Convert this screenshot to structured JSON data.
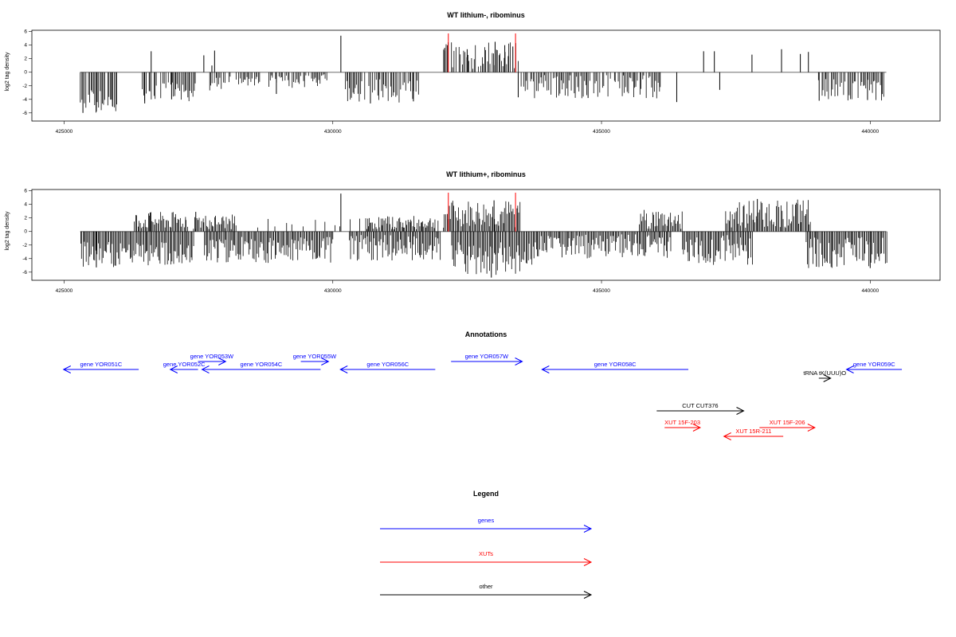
{
  "colors": {
    "gene": "#0000ff",
    "xut": "#ff0000",
    "other": "#000000",
    "marker": "#ff0000",
    "bars": "#000000",
    "zero_line": "#888888"
  },
  "chart_data": [
    {
      "type": "bar",
      "title": "WT lithium-, ribominus",
      "ylabel": "log2 tag density",
      "xlim": [
        424400,
        441300
      ],
      "ylim": [
        -7.2,
        6.2
      ],
      "xticks": [
        425000,
        430000,
        435000,
        440000
      ],
      "xtick_labels": [
        "425000",
        "430000",
        "435000",
        "440000"
      ],
      "yticks": [
        6,
        4,
        2,
        0,
        -2,
        -4,
        -6
      ],
      "ytick_labels": [
        "6",
        "4",
        "2",
        "0",
        "-2",
        "-4",
        "-6"
      ],
      "data_range": [
        425300,
        440300
      ],
      "markers": [
        432150,
        433400
      ],
      "density": "sparse",
      "peaks": [
        {
          "x": 425350,
          "y": -6.0
        },
        {
          "x": 425600,
          "y": -5.8
        },
        {
          "x": 425900,
          "y": -5.0
        },
        {
          "x": 426500,
          "y": -4.6
        },
        {
          "x": 426620,
          "y": 3.1
        },
        {
          "x": 427000,
          "y": -4.0
        },
        {
          "x": 427600,
          "y": 2.5
        },
        {
          "x": 427750,
          "y": 1.0
        },
        {
          "x": 427800,
          "y": 3.2
        },
        {
          "x": 428950,
          "y": -3.2
        },
        {
          "x": 430150,
          "y": 5.4
        },
        {
          "x": 430700,
          "y": -4.6
        },
        {
          "x": 431500,
          "y": -4.3
        },
        {
          "x": 432080,
          "y": 3.6
        },
        {
          "x": 432500,
          "y": 3.4
        },
        {
          "x": 433020,
          "y": 4.5
        },
        {
          "x": 433200,
          "y": 4.0
        },
        {
          "x": 433350,
          "y": 3.8
        },
        {
          "x": 433450,
          "y": -3.7
        },
        {
          "x": 434750,
          "y": -3.8
        },
        {
          "x": 436400,
          "y": -4.4
        },
        {
          "x": 436900,
          "y": 3.1
        },
        {
          "x": 437100,
          "y": 3.1
        },
        {
          "x": 437200,
          "y": -2.6
        },
        {
          "x": 437800,
          "y": 2.6
        },
        {
          "x": 438350,
          "y": 3.4
        },
        {
          "x": 438700,
          "y": 2.7
        },
        {
          "x": 438850,
          "y": 3.0
        },
        {
          "x": 439050,
          "y": -4.2
        },
        {
          "x": 439950,
          "y": -4.1
        }
      ],
      "regions": [
        {
          "start": 425300,
          "end": 426000,
          "sign": -1,
          "min": 2.5,
          "max": 6.0
        },
        {
          "start": 426450,
          "end": 427450,
          "sign": -1,
          "min": 1.5,
          "max": 4.3
        },
        {
          "start": 427700,
          "end": 428100,
          "sign": -1,
          "min": 0.4,
          "max": 2.7
        },
        {
          "start": 428200,
          "end": 428700,
          "sign": -1,
          "min": 0.5,
          "max": 2.0
        },
        {
          "start": 428800,
          "end": 429900,
          "sign": -1,
          "min": 0.3,
          "max": 2.3
        },
        {
          "start": 430200,
          "end": 431600,
          "sign": -1,
          "min": 1.0,
          "max": 4.5
        },
        {
          "start": 432050,
          "end": 433450,
          "sign": 1,
          "min": 0.5,
          "max": 4.5
        },
        {
          "start": 433500,
          "end": 436100,
          "sign": -1,
          "min": 0.4,
          "max": 3.9
        },
        {
          "start": 439000,
          "end": 440250,
          "sign": -1,
          "min": 1.0,
          "max": 4.2
        }
      ]
    },
    {
      "type": "bar",
      "title": "WT lithium+, ribominus",
      "ylabel": "log2 tag density",
      "xlim": [
        424400,
        441300
      ],
      "ylim": [
        -7.2,
        6.2
      ],
      "xticks": [
        425000,
        430000,
        435000,
        440000
      ],
      "xtick_labels": [
        "425000",
        "430000",
        "435000",
        "440000"
      ],
      "yticks": [
        6,
        4,
        2,
        0,
        -2,
        -4,
        -6
      ],
      "ytick_labels": [
        "6",
        "4",
        "2",
        "0",
        "-2",
        "-4",
        "-6"
      ],
      "data_range": [
        425300,
        440300
      ],
      "markers": [
        432150,
        433400
      ],
      "density": "dense",
      "peaks": [
        {
          "x": 430150,
          "y": 5.6
        },
        {
          "x": 432950,
          "y": -6.8
        },
        {
          "x": 433000,
          "y": 4.6
        },
        {
          "x": 437900,
          "y": 4.8
        },
        {
          "x": 438650,
          "y": 4.1
        },
        {
          "x": 439000,
          "y": -5.2
        },
        {
          "x": 440000,
          "y": -5.4
        },
        {
          "x": 425600,
          "y": -5.3
        },
        {
          "x": 426600,
          "y": 2.8
        },
        {
          "x": 427450,
          "y": 2.9
        }
      ],
      "regions": [
        {
          "start": 425300,
          "end": 426300,
          "sign": -1,
          "min": 1.5,
          "max": 5.3
        },
        {
          "start": 426300,
          "end": 427300,
          "sign": 1,
          "min": 0.3,
          "max": 2.9
        },
        {
          "start": 426300,
          "end": 427400,
          "sign": -1,
          "min": 1.5,
          "max": 5.0
        },
        {
          "start": 427400,
          "end": 428200,
          "sign": 1,
          "min": 0.3,
          "max": 2.5
        },
        {
          "start": 427600,
          "end": 430000,
          "sign": -1,
          "min": 0.8,
          "max": 4.8
        },
        {
          "start": 430300,
          "end": 432000,
          "sign": -1,
          "min": 0.5,
          "max": 4.3
        },
        {
          "start": 430600,
          "end": 431900,
          "sign": 1,
          "min": 0.3,
          "max": 2.3
        },
        {
          "start": 432050,
          "end": 433500,
          "sign": 1,
          "min": 0.5,
          "max": 4.6
        },
        {
          "start": 432200,
          "end": 433800,
          "sign": -1,
          "min": 1.5,
          "max": 6.5
        },
        {
          "start": 433800,
          "end": 436300,
          "sign": -1,
          "min": 0.4,
          "max": 4.0
        },
        {
          "start": 435700,
          "end": 436500,
          "sign": 1,
          "min": 0.3,
          "max": 3.3
        },
        {
          "start": 436500,
          "end": 437800,
          "sign": -1,
          "min": 0.5,
          "max": 5.0
        },
        {
          "start": 437300,
          "end": 438900,
          "sign": 1,
          "min": 0.5,
          "max": 4.8
        },
        {
          "start": 438800,
          "end": 440300,
          "sign": -1,
          "min": 0.8,
          "max": 5.4
        }
      ]
    },
    {
      "type": "annotation-track",
      "title": "Annotations",
      "features": [
        {
          "label": "gene YOR051C",
          "start": 425300,
          "end": 427200,
          "strand": "-",
          "class": "gene",
          "row": 0
        },
        {
          "label": "gene YOR052C",
          "start": 428000,
          "end": 428700,
          "strand": "-",
          "class": "gene",
          "row": 0
        },
        {
          "label": "gene YOR053W",
          "start": 428700,
          "end": 429400,
          "strand": "+",
          "class": "gene",
          "row": -1
        },
        {
          "label": "gene YOR054C",
          "start": 428800,
          "end": 431800,
          "strand": "-",
          "class": "gene",
          "row": 0
        },
        {
          "label": "gene YOR055W",
          "start": 431300,
          "end": 432000,
          "strand": "+",
          "class": "gene",
          "row": -1
        },
        {
          "label": "gene YOR056C",
          "start": 432300,
          "end": 434700,
          "strand": "-",
          "class": "gene",
          "row": 0
        },
        {
          "label": "gene YOR057W",
          "start": 435100,
          "end": 436900,
          "strand": "+",
          "class": "gene",
          "row": -1
        },
        {
          "label": "gene YOR058C",
          "start": 437400,
          "end": 441100,
          "strand": "-",
          "class": "gene",
          "row": 0
        },
        {
          "label": "tRNA tK(UUU)O",
          "start": 444400,
          "end": 444700,
          "strand": "+",
          "class": "other",
          "row": 1
        },
        {
          "label": "gene YOR059C",
          "start": 445100,
          "end": 446500,
          "strand": "-",
          "class": "gene",
          "row": 0
        },
        {
          "label": "CUT CUT376",
          "start": 440300,
          "end": 442500,
          "strand": "+",
          "class": "other",
          "row": 3
        },
        {
          "label": "XUT 15F-203",
          "start": 440500,
          "end": 441400,
          "strand": "+",
          "class": "xut",
          "row": 4
        },
        {
          "label": "XUT 15F-206",
          "start": 442900,
          "end": 444300,
          "strand": "+",
          "class": "xut",
          "row": 4
        },
        {
          "label": "XUT 15R-211",
          "start": 442000,
          "end": 443500,
          "strand": "-",
          "class": "xut",
          "row": 5
        }
      ]
    }
  ],
  "legend": {
    "title": "Legend",
    "items": [
      {
        "label": "genes",
        "class": "gene"
      },
      {
        "label": "XUTs",
        "class": "xut"
      },
      {
        "label": "other",
        "class": "other"
      }
    ]
  }
}
